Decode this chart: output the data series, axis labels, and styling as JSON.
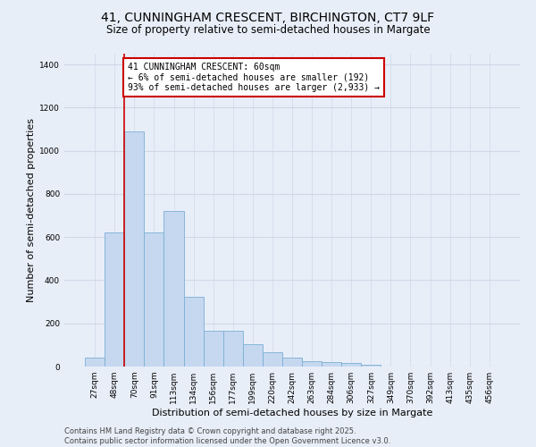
{
  "title_line1": "41, CUNNINGHAM CRESCENT, BIRCHINGTON, CT7 9LF",
  "title_line2": "Size of property relative to semi-detached houses in Margate",
  "xlabel": "Distribution of semi-detached houses by size in Margate",
  "ylabel": "Number of semi-detached properties",
  "bar_color": "#c5d8f0",
  "bar_edge_color": "#7bafd4",
  "background_color": "#e8eef8",
  "grid_color": "#d0d8e8",
  "categories": [
    "27sqm",
    "48sqm",
    "70sqm",
    "91sqm",
    "113sqm",
    "134sqm",
    "156sqm",
    "177sqm",
    "199sqm",
    "220sqm",
    "242sqm",
    "263sqm",
    "284sqm",
    "306sqm",
    "327sqm",
    "349sqm",
    "370sqm",
    "392sqm",
    "413sqm",
    "435sqm",
    "456sqm"
  ],
  "values": [
    40,
    620,
    1090,
    620,
    720,
    325,
    165,
    165,
    105,
    65,
    40,
    25,
    20,
    15,
    10,
    0,
    0,
    0,
    0,
    0,
    0
  ],
  "ylim": [
    0,
    1450
  ],
  "yticks": [
    0,
    200,
    400,
    600,
    800,
    1000,
    1200,
    1400
  ],
  "property_line_x": 1.5,
  "annotation_title": "41 CUNNINGHAM CRESCENT: 60sqm",
  "annotation_line1": "← 6% of semi-detached houses are smaller (192)",
  "annotation_line2": "93% of semi-detached houses are larger (2,933) →",
  "annotation_box_color": "#ffffff",
  "annotation_border_color": "#cc0000",
  "vline_color": "#cc0000",
  "footer_line1": "Contains HM Land Registry data © Crown copyright and database right 2025.",
  "footer_line2": "Contains public sector information licensed under the Open Government Licence v3.0.",
  "title_fontsize": 10,
  "subtitle_fontsize": 8.5,
  "axis_label_fontsize": 8,
  "tick_fontsize": 6.5,
  "annotation_fontsize": 7,
  "footer_fontsize": 6
}
